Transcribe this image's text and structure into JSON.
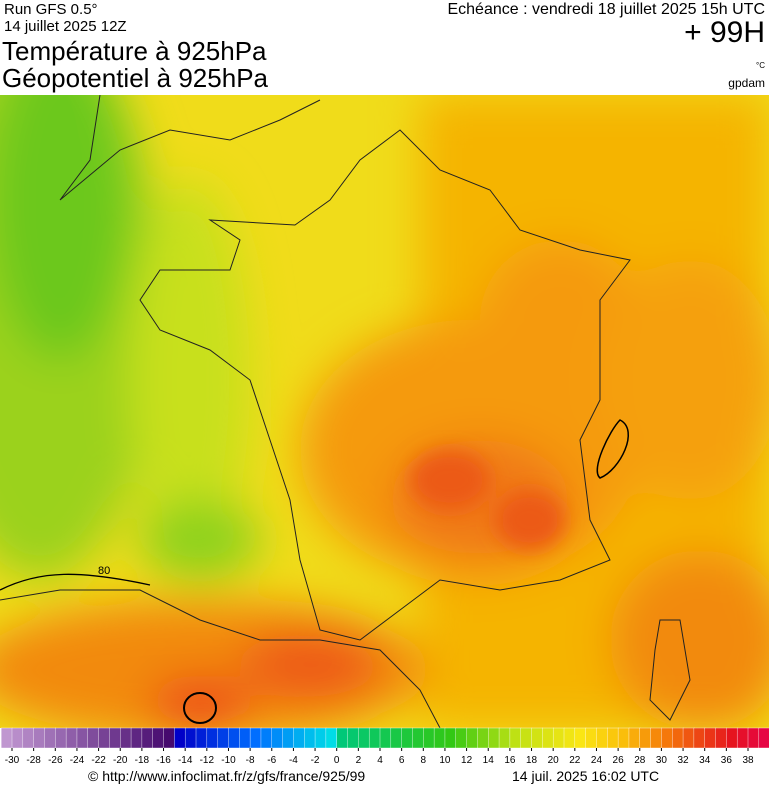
{
  "header": {
    "run": "Run GFS 0.5°",
    "date": "14 juillet 2025 12Z",
    "title_line1": "Température à 925hPa",
    "title_line2": "Géopotentiel à 925hPa",
    "echeance": "Echéance : vendredi 18 juillet 2025 15h UTC",
    "lead": "+ 99H",
    "unit": "°C",
    "unit2": "gpdam"
  },
  "map": {
    "contour_label": "80"
  },
  "colorbar": {
    "ticks": [
      -30,
      -28,
      -26,
      -24,
      -22,
      -20,
      -18,
      -16,
      -14,
      -12,
      -10,
      -8,
      -6,
      -4,
      -2,
      0,
      2,
      4,
      6,
      8,
      10,
      12,
      14,
      16,
      18,
      20,
      22,
      24,
      26,
      28,
      30,
      32,
      34,
      36,
      38
    ]
  },
  "footer": {
    "source": "© http://www.infoclimat.fr/z/gfs/france/925/99",
    "timestamp": "14 juil. 2025 16:02 UTC"
  }
}
